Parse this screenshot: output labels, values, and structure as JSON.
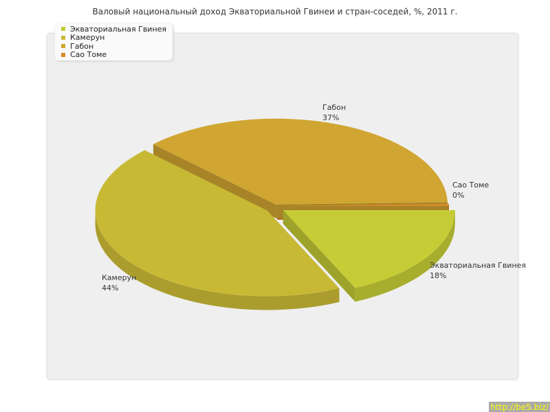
{
  "title": "Валовый национальный доход Экваториальной Гвинеи и стран-соседей, %, 2011 г.",
  "watermark": "http://be5.biz/",
  "chart_data": {
    "type": "pie",
    "title": "Валовый национальный доход Экваториальной Гвинеи и стран-соседей, %, 2011 г.",
    "legend_position": "top-left",
    "three_d": true,
    "slices": [
      {
        "name": "Экваториальная Гвинея",
        "value": 18,
        "label": "18%",
        "color": "#c5cc35"
      },
      {
        "name": "Камерун",
        "value": 44,
        "label": "44%",
        "color": "#c8b935"
      },
      {
        "name": "Габон",
        "value": 37,
        "label": "37%",
        "color": "#d0a531"
      },
      {
        "name": "Сао Томе",
        "value": 0,
        "label": "0%",
        "color": "#d98a2a"
      }
    ]
  }
}
